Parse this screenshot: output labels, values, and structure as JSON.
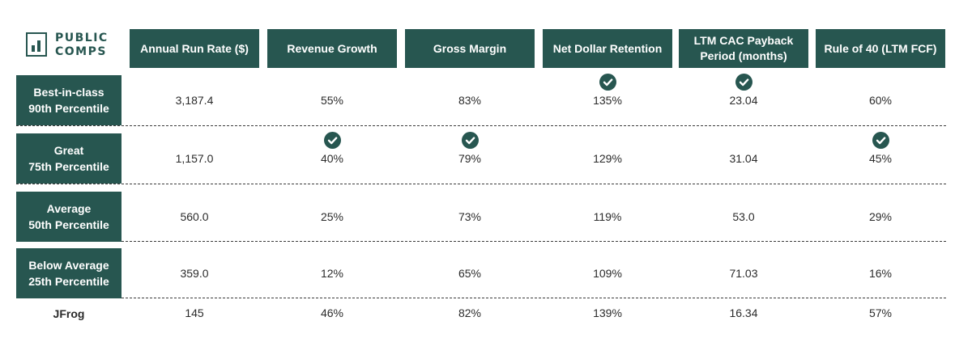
{
  "brand": {
    "line1": "PUBLIC",
    "line2": "COMPS"
  },
  "colors": {
    "accent": "#275650",
    "text": "#2b2b2b",
    "background": "#ffffff"
  },
  "chart_data": {
    "type": "table",
    "columns": [
      "Annual Run Rate ($)",
      "Revenue Growth",
      "Gross Margin",
      "Net Dollar Retention",
      "LTM CAC Payback Period (months)",
      "Rule of 40 (LTM FCF)"
    ],
    "rows": [
      {
        "label_line1": "Best-in-class",
        "label_line2": "90th Percentile",
        "values": [
          "3,187.4",
          "55%",
          "83%",
          "135%",
          "23.04",
          "60%"
        ],
        "checks": [
          false,
          false,
          false,
          true,
          true,
          false
        ]
      },
      {
        "label_line1": "Great",
        "label_line2": "75th Percentile",
        "values": [
          "1,157.0",
          "40%",
          "79%",
          "129%",
          "31.04",
          "45%"
        ],
        "checks": [
          false,
          true,
          true,
          false,
          false,
          true
        ]
      },
      {
        "label_line1": "Average",
        "label_line2": "50th Percentile",
        "values": [
          "560.0",
          "25%",
          "73%",
          "119%",
          "53.0",
          "29%"
        ],
        "checks": [
          false,
          false,
          false,
          false,
          false,
          false
        ]
      },
      {
        "label_line1": "Below Average",
        "label_line2": "25th Percentile",
        "values": [
          "359.0",
          "12%",
          "65%",
          "109%",
          "71.03",
          "16%"
        ],
        "checks": [
          false,
          false,
          false,
          false,
          false,
          false
        ]
      },
      {
        "label_line1": "JFrog",
        "label_line2": "",
        "values": [
          "145",
          "46%",
          "82%",
          "139%",
          "16.34",
          "57%"
        ],
        "checks": [
          false,
          false,
          false,
          false,
          false,
          false
        ]
      }
    ]
  }
}
